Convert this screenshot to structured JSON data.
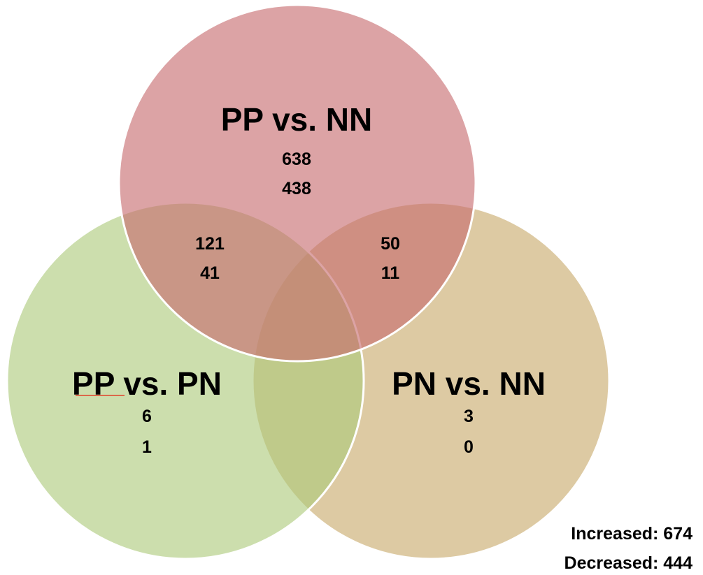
{
  "sets": [
    {
      "id": "top",
      "title": "PP vs. NN",
      "increased": "638",
      "decreased": "438",
      "color": "#d9999a"
    },
    {
      "id": "left",
      "title": "PP vs. PN",
      "increased": "6",
      "decreased": "1",
      "color": "#c2d8a0"
    },
    {
      "id": "right",
      "title": "PN vs. NN",
      "increased": "3",
      "decreased": "0",
      "color": "#d6c399"
    }
  ],
  "overlaps": {
    "top_left": {
      "increased": "121",
      "decreased": "41"
    },
    "top_right": {
      "increased": "50",
      "decreased": "11"
    }
  },
  "summary": {
    "increased": "Increased: 674",
    "decreased": "Decreased: 444"
  }
}
